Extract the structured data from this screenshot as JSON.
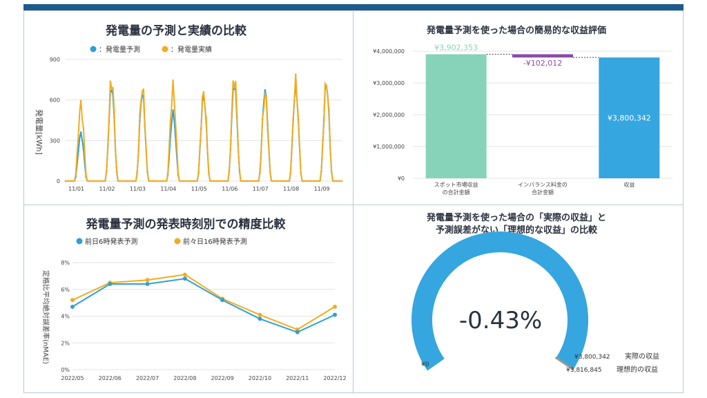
{
  "colors": {
    "forecast": "#2f9fd6",
    "actual": "#f3ac1f",
    "green": "#86d3b9",
    "purple": "#8c4aa8",
    "blue": "#35a6df",
    "dark": "#2b3140"
  },
  "chart_data": [
    {
      "type": "line",
      "title": "発電量の予測と実績の比較",
      "legend": [
        "：発電量予測",
        "：発電量実績"
      ],
      "ylabel": "発電量[kWh]",
      "ylim": [
        0,
        900
      ],
      "yticks": [
        "0",
        "300",
        "600",
        "900"
      ],
      "x_tick_labels": [
        "11/01",
        "11/02",
        "11/03",
        "11/04",
        "11/05",
        "11/06",
        "11/07",
        "11/08",
        "11/09"
      ],
      "days": 9,
      "series": [
        {
          "name": "発電量予測",
          "daily_peak": [
            350,
            700,
            650,
            500,
            630,
            720,
            670,
            690,
            720
          ]
        },
        {
          "name": "発電量実績",
          "daily_peak": [
            560,
            750,
            690,
            680,
            650,
            770,
            640,
            720,
            730
          ]
        }
      ]
    },
    {
      "type": "bar",
      "subtype": "waterfall",
      "title": "発電量予測を使った場合の簡易的な収益評価",
      "categories": [
        "スポット市場収益\nの合計金額",
        "インバランス料金の\n合計金額",
        "収益"
      ],
      "values": [
        3902353,
        -102012,
        3800342
      ],
      "data_labels": [
        "¥3,902,353",
        "-¥102,012",
        "¥3,800,342"
      ],
      "ylim": [
        0,
        4000000
      ],
      "yticks": [
        "¥0",
        "¥1,000,000",
        "¥2,000,000",
        "¥3,000,000",
        "¥4,000,000"
      ]
    },
    {
      "type": "line",
      "title": "発電量予測の発表時刻別での精度比較",
      "ylabel": "定格比平均絶対誤差率(nMAE)",
      "categories": [
        "2022/05",
        "2022/06",
        "2022/07",
        "2022/08",
        "2022/09",
        "2022/10",
        "2022/11",
        "2022/12"
      ],
      "ylim": [
        0,
        8
      ],
      "yticks": [
        "0%",
        "2%",
        "4%",
        "6%",
        "8%"
      ],
      "series": [
        {
          "name": "前日6時発表予測",
          "values": [
            4.7,
            6.4,
            6.4,
            6.8,
            5.2,
            3.8,
            2.8,
            4.1
          ]
        },
        {
          "name": "前々日16時発表予測",
          "values": [
            5.2,
            6.5,
            6.7,
            7.1,
            5.3,
            4.1,
            3.0,
            4.7
          ]
        }
      ]
    },
    {
      "type": "gauge",
      "title_lines": [
        "発電量予測を使った場合の「実際の収益」と",
        "予測誤差がない「理想的な収益」の比較"
      ],
      "value": 3800342,
      "max": 3816845,
      "center_label": "-0.43%",
      "min_label": "¥0",
      "value_label": "¥3,800,342",
      "value_name": "実際の収益",
      "max_label": "¥3,816,845",
      "max_name": "理想的の収益"
    }
  ]
}
